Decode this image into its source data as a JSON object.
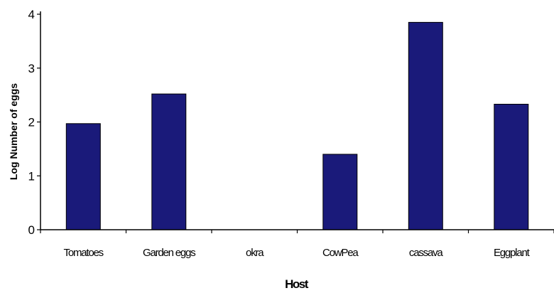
{
  "chart_data": {
    "type": "bar",
    "title": "",
    "xlabel": "Host",
    "ylabel": "Log Number of eggs",
    "categories": [
      "Tomatoes",
      "Garden eggs",
      "okra",
      "CowPea",
      "cassava",
      "Eggplant"
    ],
    "values": [
      1.97,
      2.52,
      0.0,
      1.4,
      3.85,
      2.33
    ],
    "ylim": [
      0,
      4
    ],
    "yticks": [
      "0",
      "1",
      "2",
      "3",
      "4"
    ],
    "grid": false,
    "legend": "none",
    "bar_color": "#1a1a7a"
  }
}
